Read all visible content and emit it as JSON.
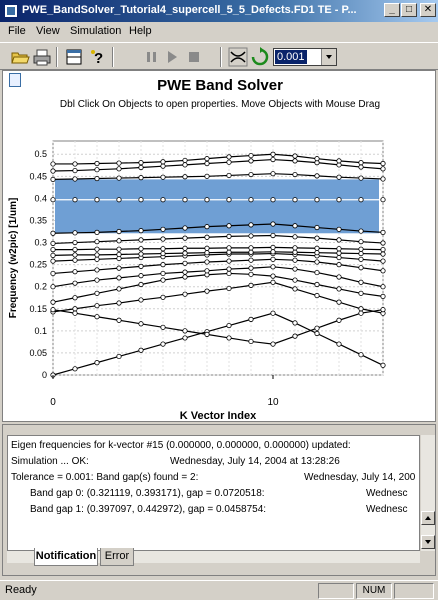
{
  "window": {
    "title": "PWE_BandSolver_Tutorial4_supercell_5_5_Defects.FD1 TE - P...",
    "minimize": "_",
    "maximize": "□",
    "close": "✕"
  },
  "menu": [
    "File",
    "View",
    "Simulation",
    "Help"
  ],
  "toolbar": {
    "zoom_value": "0.001",
    "icons": [
      "open-icon",
      "print-icon",
      "layout-icon",
      "help-icon",
      "pause-icon",
      "play-icon",
      "stop-icon",
      "zoom-fit-icon",
      "refresh-icon"
    ]
  },
  "chart": {
    "title": "PWE Band Solver",
    "subtitle": "Dbl Click On Objects to open properties.  Move Objects with Mouse Drag",
    "xlabel": "K Vector Index",
    "ylabel": "Frequency (w2pic) [1/um]"
  },
  "chart_data": {
    "type": "line",
    "x": [
      0,
      1,
      2,
      3,
      4,
      5,
      6,
      7,
      8,
      9,
      10,
      11,
      12,
      13,
      14,
      15
    ],
    "xlim": [
      0,
      15
    ],
    "xticks": [
      0,
      10
    ],
    "ylim": [
      0,
      0.53
    ],
    "yticks": [
      0,
      0.05,
      0.1,
      0.15,
      0.2,
      0.25,
      0.3,
      0.35,
      0.4,
      0.45,
      0.5
    ],
    "bandgap_highlight": [
      0.321,
      0.443
    ],
    "bandgap_color": "#6f9fd4",
    "line_color": "#000000",
    "series": [
      {
        "values": [
          0.0,
          0.014,
          0.028,
          0.042,
          0.056,
          0.07,
          0.084,
          0.098,
          0.112,
          0.126,
          0.14,
          0.118,
          0.094,
          0.07,
          0.046,
          0.022
        ]
      },
      {
        "values": [
          0.143,
          0.15,
          0.157,
          0.163,
          0.17,
          0.176,
          0.183,
          0.19,
          0.196,
          0.203,
          0.21,
          0.195,
          0.18,
          0.165,
          0.15,
          0.14
        ]
      },
      {
        "values": [
          0.148,
          0.14,
          0.132,
          0.124,
          0.116,
          0.108,
          0.1,
          0.092,
          0.084,
          0.076,
          0.07,
          0.088,
          0.106,
          0.124,
          0.14,
          0.148
        ]
      },
      {
        "values": [
          0.165,
          0.175,
          0.185,
          0.195,
          0.205,
          0.215,
          0.222,
          0.227,
          0.23,
          0.228,
          0.224,
          0.215,
          0.205,
          0.195,
          0.185,
          0.178
        ]
      },
      {
        "values": [
          0.2,
          0.208,
          0.215,
          0.22,
          0.225,
          0.23,
          0.233,
          0.236,
          0.24,
          0.242,
          0.245,
          0.24,
          0.232,
          0.222,
          0.21,
          0.2
        ]
      },
      {
        "values": [
          0.23,
          0.234,
          0.238,
          0.242,
          0.246,
          0.25,
          0.253,
          0.256,
          0.258,
          0.26,
          0.262,
          0.26,
          0.256,
          0.25,
          0.243,
          0.236
        ]
      },
      {
        "values": [
          0.258,
          0.26,
          0.262,
          0.264,
          0.266,
          0.268,
          0.27,
          0.272,
          0.274,
          0.274,
          0.275,
          0.273,
          0.27,
          0.266,
          0.262,
          0.258
        ]
      },
      {
        "values": [
          0.271,
          0.272,
          0.272,
          0.273,
          0.274,
          0.275,
          0.276,
          0.277,
          0.278,
          0.278,
          0.279,
          0.278,
          0.277,
          0.276,
          0.275,
          0.274
        ]
      },
      {
        "values": [
          0.284,
          0.284,
          0.285,
          0.285,
          0.286,
          0.286,
          0.287,
          0.287,
          0.288,
          0.288,
          0.289,
          0.288,
          0.287,
          0.286,
          0.285,
          0.284
        ]
      },
      {
        "values": [
          0.298,
          0.3,
          0.302,
          0.304,
          0.306,
          0.308,
          0.31,
          0.312,
          0.314,
          0.315,
          0.316,
          0.313,
          0.31,
          0.306,
          0.302,
          0.299
        ]
      },
      {
        "values": [
          0.321,
          0.322,
          0.323,
          0.325,
          0.327,
          0.33,
          0.333,
          0.336,
          0.338,
          0.34,
          0.342,
          0.338,
          0.334,
          0.33,
          0.326,
          0.323
        ]
      },
      {
        "values": [
          0.397,
          0.397,
          0.397,
          0.397,
          0.397,
          0.397,
          0.397,
          0.397,
          0.397,
          0.397,
          0.397,
          0.397,
          0.397,
          0.397,
          0.397,
          0.397
        ]
      },
      {
        "values": [
          0.443,
          0.444,
          0.445,
          0.446,
          0.447,
          0.448,
          0.449,
          0.45,
          0.452,
          0.454,
          0.456,
          0.454,
          0.451,
          0.448,
          0.446,
          0.444
        ]
      },
      {
        "values": [
          0.462,
          0.463,
          0.465,
          0.467,
          0.47,
          0.473,
          0.476,
          0.479,
          0.482,
          0.485,
          0.488,
          0.485,
          0.481,
          0.476,
          0.471,
          0.467
        ]
      },
      {
        "values": [
          0.478,
          0.478,
          0.479,
          0.48,
          0.481,
          0.483,
          0.486,
          0.49,
          0.494,
          0.497,
          0.5,
          0.496,
          0.49,
          0.485,
          0.481,
          0.479
        ]
      }
    ]
  },
  "log": {
    "lines": [
      "Eigen frequencies for k-vector #15 (0.000000, 0.000000, 0.000000) updated:",
      "Simulation ... OK:",
      "Tolerance = 0.001: Band gap(s) found = 2:",
      "Band gap 0: (0.321119, 0.393171), gap = 0.0720518:",
      "Band gap 1: (0.397097, 0.442972), gap = 0.0458754:"
    ],
    "times": [
      "Wednesday, July 14, 2004 at 13:28:26",
      "Wednesday, July 14, 200",
      "Wednesc",
      "Wednesc"
    ]
  },
  "tabs": [
    "Notification",
    "Error"
  ],
  "status": {
    "text": "Ready",
    "num": "NUM"
  }
}
